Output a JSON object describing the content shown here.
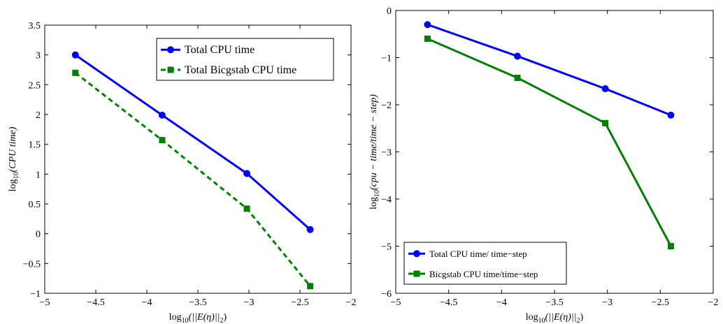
{
  "chart_data": [
    {
      "type": "line",
      "x": [
        -4.7,
        -3.85,
        -3.02,
        -2.4
      ],
      "xlim": [
        -5,
        -2
      ],
      "ylim": [
        -1,
        3.5
      ],
      "xticks": [
        "−5",
        "−4.5",
        "−4",
        "−3.5",
        "−3",
        "−2.5",
        "−2"
      ],
      "yticks": [
        "−1",
        "−0.5",
        "0",
        "0.5",
        "1",
        "1.5",
        "2",
        "2.5",
        "3",
        "3.5"
      ],
      "xlabel": {
        "pre": "log",
        "sub": "10",
        "post": "(||E(η)||",
        "sub2": "2",
        "end": ")"
      },
      "ylabel": {
        "pre": "log",
        "sub": "10",
        "post": "(CPU time)"
      },
      "legend_position": "top-right",
      "grid": false,
      "series": [
        {
          "name": "Total CPU time",
          "values": [
            3.0,
            1.99,
            1.01,
            0.07
          ],
          "color": "#0000ff",
          "marker": "circle",
          "dash": "solid"
        },
        {
          "name": "Total Bicgstab CPU time",
          "values": [
            2.7,
            1.57,
            0.42,
            -0.88
          ],
          "color": "#008000",
          "marker": "square",
          "dash": "dashed"
        }
      ]
    },
    {
      "type": "line",
      "x": [
        -4.7,
        -3.85,
        -3.02,
        -2.4
      ],
      "xlim": [
        -5,
        -2
      ],
      "ylim": [
        -6,
        0
      ],
      "xticks": [
        "−5",
        "−4.5",
        "−4",
        "−3.5",
        "−3",
        "−2.5",
        "−2"
      ],
      "yticks": [
        "−6",
        "−5",
        "−4",
        "−3",
        "−2",
        "−1",
        "0"
      ],
      "xlabel": {
        "pre": "log",
        "sub": "10",
        "post": "(||E(η)||",
        "sub2": "2",
        "end": ")"
      },
      "ylabel": {
        "pre": "log",
        "sub": "10",
        "post": "(cpu − time/time − step)"
      },
      "legend_position": "bottom-left",
      "grid": false,
      "series": [
        {
          "name": "Total CPU time/ time−step",
          "values": [
            -0.3,
            -0.97,
            -1.66,
            -2.22
          ],
          "color": "#0000ff",
          "marker": "circle",
          "dash": "solid"
        },
        {
          "name": "Bicgstab CPU time/time−step",
          "values": [
            -0.6,
            -1.43,
            -2.39,
            -5.0
          ],
          "color": "#008000",
          "marker": "square",
          "dash": "solid"
        }
      ]
    }
  ]
}
